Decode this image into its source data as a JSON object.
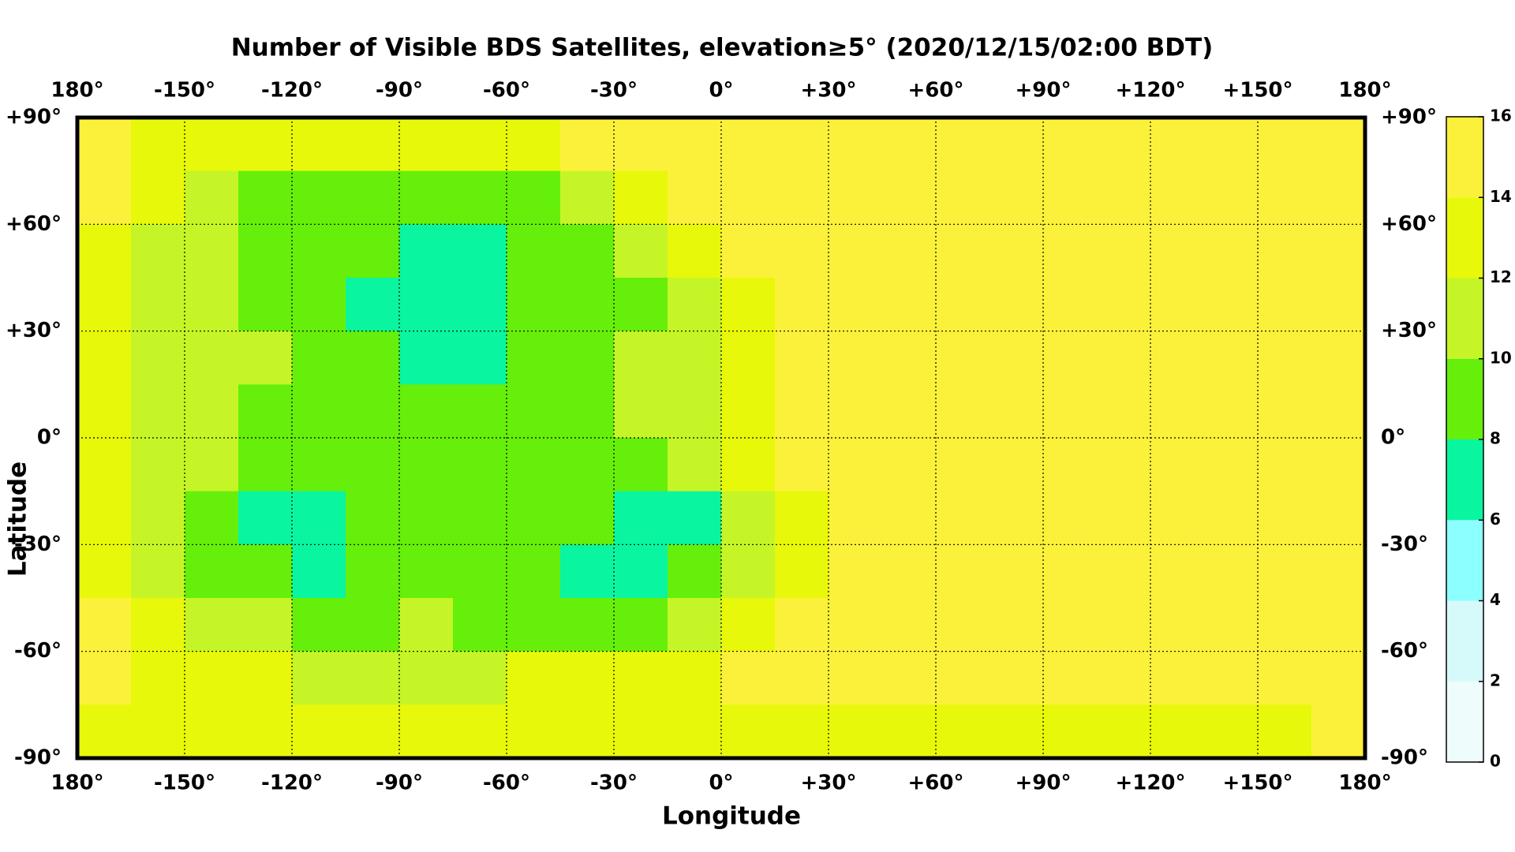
{
  "chart_data": {
    "type": "heatmap",
    "title": "Number of Visible BDS Satellites, elevation≥5° (2020/12/15/02:00 BDT)",
    "x_label": "Longitude",
    "y_label": "Latitude",
    "xlim": [
      -180,
      180
    ],
    "ylim": [
      -90,
      90
    ],
    "xticks": [
      {
        "value": -180,
        "label": "180°"
      },
      {
        "value": -150,
        "label": "-150°"
      },
      {
        "value": -120,
        "label": "-120°"
      },
      {
        "value": -90,
        "label": "-90°"
      },
      {
        "value": -60,
        "label": "-60°"
      },
      {
        "value": -30,
        "label": "-30°"
      },
      {
        "value": 0,
        "label": "0°"
      },
      {
        "value": 30,
        "label": "+30°"
      },
      {
        "value": 60,
        "label": "+60°"
      },
      {
        "value": 90,
        "label": "+90°"
      },
      {
        "value": 120,
        "label": "+120°"
      },
      {
        "value": 150,
        "label": "+150°"
      },
      {
        "value": 180,
        "label": "180°"
      }
    ],
    "yticks": [
      {
        "value": 90,
        "label": "+90°"
      },
      {
        "value": 60,
        "label": "+60°"
      },
      {
        "value": 30,
        "label": "+30°"
      },
      {
        "value": 0,
        "label": "0°"
      },
      {
        "value": -30,
        "label": "-30°"
      },
      {
        "value": -60,
        "label": "-60°"
      },
      {
        "value": -90,
        "label": "-90°"
      }
    ],
    "grid": true,
    "values": [
      [
        15,
        13,
        13,
        13,
        13,
        13,
        13,
        13,
        13,
        15,
        15,
        15,
        15,
        15,
        15,
        15,
        15,
        15,
        15,
        15,
        15,
        15,
        15,
        15
      ],
      [
        15,
        13,
        11,
        9,
        9,
        9,
        9,
        9,
        9,
        11,
        13,
        15,
        15,
        15,
        15,
        15,
        15,
        15,
        15,
        15,
        15,
        15,
        15,
        15
      ],
      [
        13,
        11,
        11,
        9,
        9,
        9,
        7,
        7,
        9,
        9,
        11,
        13,
        15,
        15,
        15,
        15,
        15,
        15,
        15,
        15,
        15,
        15,
        15,
        15
      ],
      [
        13,
        11,
        11,
        9,
        9,
        7,
        7,
        7,
        9,
        9,
        9,
        11,
        13,
        15,
        15,
        15,
        15,
        15,
        15,
        15,
        15,
        15,
        15,
        15
      ],
      [
        13,
        11,
        11,
        11,
        9,
        9,
        7,
        7,
        9,
        9,
        11,
        11,
        13,
        15,
        15,
        15,
        15,
        15,
        15,
        15,
        15,
        15,
        15,
        15
      ],
      [
        13,
        11,
        11,
        9,
        9,
        9,
        9,
        9,
        9,
        9,
        11,
        11,
        13,
        15,
        15,
        15,
        15,
        15,
        15,
        15,
        15,
        15,
        15,
        15
      ],
      [
        13,
        11,
        11,
        9,
        9,
        9,
        9,
        9,
        9,
        9,
        9,
        11,
        13,
        15,
        15,
        15,
        15,
        15,
        15,
        15,
        15,
        15,
        15,
        15
      ],
      [
        13,
        11,
        9,
        7,
        7,
        9,
        9,
        9,
        9,
        9,
        7,
        7,
        11,
        13,
        15,
        15,
        15,
        15,
        15,
        15,
        15,
        15,
        15,
        15
      ],
      [
        13,
        11,
        9,
        9,
        7,
        9,
        9,
        9,
        9,
        7,
        7,
        9,
        11,
        13,
        15,
        15,
        15,
        15,
        15,
        15,
        15,
        15,
        15,
        15
      ],
      [
        15,
        13,
        11,
        11,
        9,
        9,
        11,
        9,
        9,
        9,
        9,
        11,
        13,
        15,
        15,
        15,
        15,
        15,
        15,
        15,
        15,
        15,
        15,
        15
      ],
      [
        15,
        13,
        13,
        13,
        11,
        11,
        11,
        11,
        13,
        13,
        13,
        13,
        15,
        15,
        15,
        15,
        15,
        15,
        15,
        15,
        15,
        15,
        15,
        15
      ],
      [
        13,
        13,
        13,
        13,
        13,
        13,
        13,
        13,
        13,
        13,
        13,
        13,
        13,
        13,
        13,
        13,
        13,
        13,
        13,
        13,
        13,
        13,
        13,
        15
      ]
    ],
    "colorbar": {
      "ticks": [
        0,
        2,
        4,
        6,
        8,
        10,
        12,
        14,
        16
      ],
      "colors": [
        "#eefcfc",
        "#d6fafa",
        "#8cffff",
        "#0af5a0",
        "#66ef0a",
        "#c5f526",
        "#e8f80a",
        "#fcf13a"
      ]
    }
  }
}
